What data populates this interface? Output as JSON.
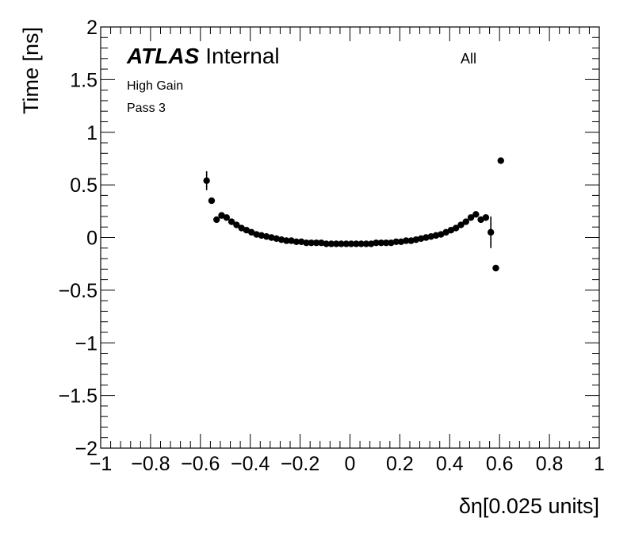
{
  "chart_data": {
    "type": "scatter",
    "title": "",
    "experiment": "ATLAS",
    "status": "Internal",
    "annotations": [
      "High Gain",
      "Pass 3"
    ],
    "category_label": "All",
    "xlabel": "δη[0.025 units]",
    "ylabel": "Time [ns]",
    "xlim": [
      -1,
      1
    ],
    "ylim": [
      -2,
      2
    ],
    "x_ticks": [
      -1,
      -0.8,
      -0.6,
      -0.4,
      -0.2,
      0,
      0.2,
      0.4,
      0.6,
      0.8,
      1
    ],
    "x_tick_labels": [
      "−1",
      "−0.8",
      "−0.6",
      "−0.4",
      "−0.2",
      "0",
      "0.2",
      "0.4",
      "0.6",
      "0.8",
      "1"
    ],
    "y_ticks": [
      -2,
      -1.5,
      -1,
      -0.5,
      0,
      0.5,
      1,
      1.5,
      2
    ],
    "y_tick_labels": [
      "−2",
      "−1.5",
      "−1",
      "−0.5",
      "0",
      "0.5",
      "1",
      "1.5",
      "2"
    ],
    "grid": false,
    "marker_color": "#000000",
    "series": [
      {
        "x": [
          -0.575,
          -0.555,
          -0.535,
          -0.515,
          -0.495,
          -0.475,
          -0.455,
          -0.435,
          -0.415,
          -0.395,
          -0.375,
          -0.355,
          -0.335,
          -0.315,
          -0.295,
          -0.275,
          -0.255,
          -0.235,
          -0.215,
          -0.195,
          -0.175,
          -0.155,
          -0.135,
          -0.115,
          -0.095,
          -0.075,
          -0.055,
          -0.035,
          -0.015,
          0.005,
          0.025,
          0.045,
          0.065,
          0.085,
          0.105,
          0.125,
          0.145,
          0.165,
          0.185,
          0.205,
          0.225,
          0.245,
          0.265,
          0.285,
          0.305,
          0.325,
          0.345,
          0.365,
          0.385,
          0.405,
          0.425,
          0.445,
          0.465,
          0.485,
          0.505,
          0.525,
          0.545,
          0.565,
          0.585,
          0.605
        ],
        "y": [
          0.54,
          0.35,
          0.17,
          0.21,
          0.19,
          0.15,
          0.12,
          0.09,
          0.07,
          0.05,
          0.03,
          0.02,
          0.01,
          0.0,
          -0.01,
          -0.02,
          -0.03,
          -0.03,
          -0.04,
          -0.04,
          -0.05,
          -0.05,
          -0.05,
          -0.05,
          -0.06,
          -0.06,
          -0.06,
          -0.06,
          -0.06,
          -0.06,
          -0.06,
          -0.06,
          -0.06,
          -0.06,
          -0.05,
          -0.05,
          -0.05,
          -0.05,
          -0.04,
          -0.04,
          -0.03,
          -0.03,
          -0.02,
          -0.01,
          0.0,
          0.01,
          0.02,
          0.03,
          0.05,
          0.07,
          0.09,
          0.12,
          0.15,
          0.19,
          0.22,
          0.17,
          0.19,
          0.05,
          -0.29,
          0.73
        ],
        "yerr": [
          0.09,
          0.03,
          0.015,
          0.015,
          0.01,
          0.01,
          0.01,
          0.01,
          0.01,
          0.01,
          0.01,
          0.01,
          0.01,
          0.01,
          0.01,
          0.01,
          0.01,
          0.01,
          0.01,
          0.01,
          0.01,
          0.01,
          0.01,
          0.01,
          0.01,
          0.01,
          0.01,
          0.01,
          0.01,
          0.01,
          0.01,
          0.01,
          0.01,
          0.01,
          0.01,
          0.01,
          0.01,
          0.01,
          0.01,
          0.01,
          0.01,
          0.01,
          0.01,
          0.01,
          0.01,
          0.01,
          0.01,
          0.01,
          0.01,
          0.01,
          0.01,
          0.01,
          0.01,
          0.015,
          0.02,
          0.03,
          0.03,
          0.15,
          0.02,
          0.02
        ]
      }
    ]
  }
}
